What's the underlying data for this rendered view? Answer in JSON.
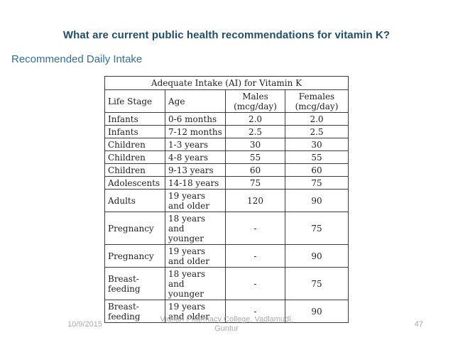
{
  "slide": {
    "title": "What are current public health recommendations for vitamin K?",
    "subtitle": "Recommended Daily Intake",
    "title_color": "#1f4e66",
    "subtitle_color": "#31708f"
  },
  "table": {
    "caption": "Adequate Intake (AI) for Vitamin K",
    "columns": [
      "Life Stage",
      "Age",
      "Males (mcg/day)",
      "Females (mcg/day)"
    ],
    "rows": [
      [
        "Infants",
        "0-6 months",
        "2.0",
        "2.0"
      ],
      [
        "Infants",
        "7-12 months",
        "2.5",
        "2.5"
      ],
      [
        "Children",
        "1-3 years",
        "30",
        "30"
      ],
      [
        "Children",
        "4-8 years",
        "55",
        "55"
      ],
      [
        "Children",
        "9-13 years",
        "60",
        "60"
      ],
      [
        "Adolescents",
        "14-18 years",
        "75",
        "75"
      ],
      [
        "Adults",
        "19 years and older",
        "120",
        "90"
      ],
      [
        "Pregnancy",
        "18 years and younger",
        "-",
        "75"
      ],
      [
        "Pregnancy",
        "19 years and older",
        "-",
        "90"
      ],
      [
        "Breast-feeding",
        "18 years and younger",
        "-",
        "75"
      ],
      [
        "Breast-feeding",
        "19 years and older",
        "-",
        "90"
      ]
    ],
    "border_color": "#3c3c3c"
  },
  "footer": {
    "date": "10/9/2015",
    "center_line1": "Vignan Pharmacy College, Vadlamudi,",
    "center_line2": "Guntur",
    "page_number": "47",
    "text_color": "#a9a9a9"
  }
}
